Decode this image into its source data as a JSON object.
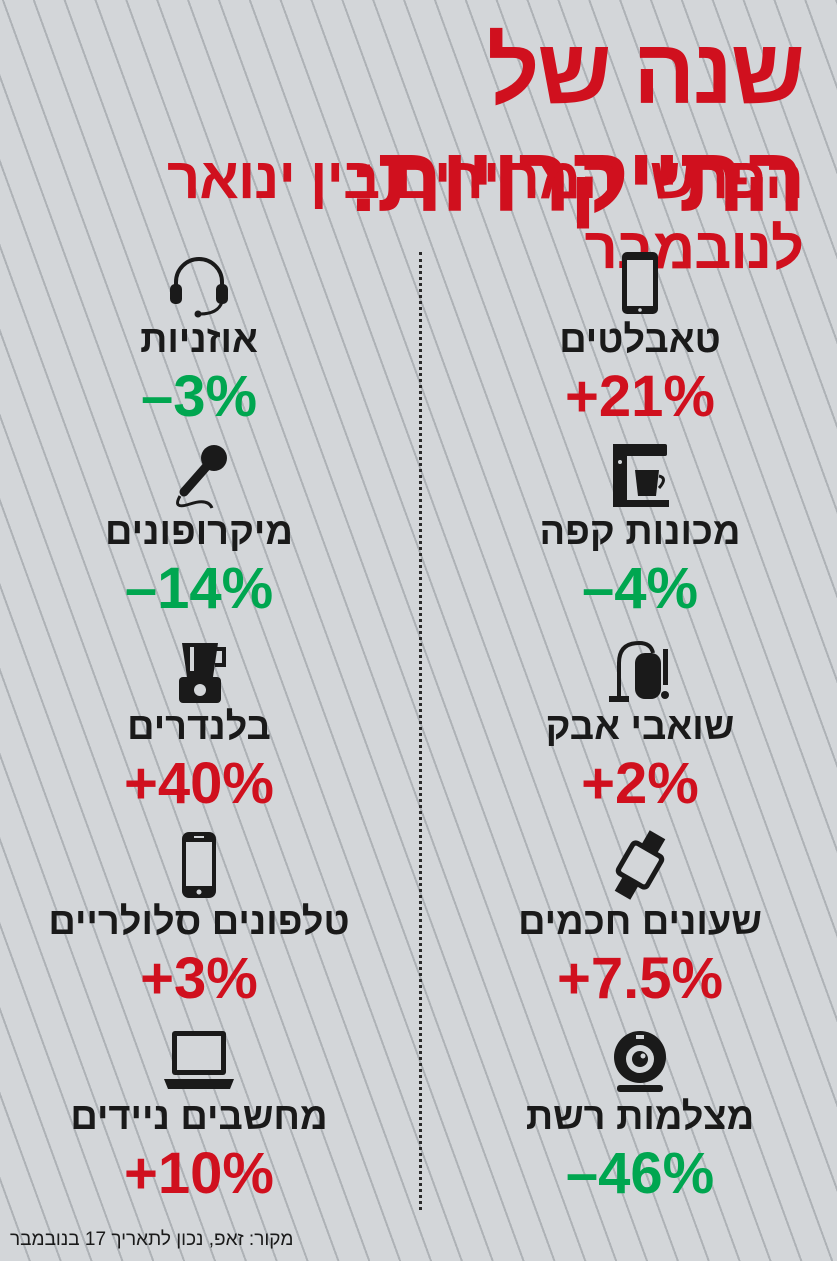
{
  "header": {
    "title": "שנה של התייקרויות:",
    "subtitle": "הפרשי המחירים בין ינואר לנובמבר"
  },
  "colors": {
    "increase": "#d0101e",
    "decrease": "#00a650",
    "text": "#1a1a1a"
  },
  "chart_data": {
    "type": "table",
    "columns": [
      {
        "items": [
          {
            "label": "טאבלטים",
            "value": "+21%",
            "change": 21,
            "icon": "tablet-icon"
          },
          {
            "label": "מכונות קפה",
            "value": "–4%",
            "change": -4,
            "icon": "coffee-machine-icon"
          },
          {
            "label": "שואבי אבק",
            "value": "+2%",
            "change": 2,
            "icon": "vacuum-cleaner-icon"
          },
          {
            "label": "שעונים חכמים",
            "value": "+7.5%",
            "change": 7.5,
            "icon": "smartwatch-icon"
          },
          {
            "label": "מצלמות רשת",
            "value": "–46%",
            "change": -46,
            "icon": "webcam-icon"
          }
        ]
      },
      {
        "items": [
          {
            "label": "אוזניות",
            "value": "–3%",
            "change": -3,
            "icon": "headphones-icon"
          },
          {
            "label": "מיקרופונים",
            "value": "–14%",
            "change": -14,
            "icon": "microphone-icon"
          },
          {
            "label": "בלנדרים",
            "value": "+40%",
            "change": 40,
            "icon": "blender-icon"
          },
          {
            "label": "טלפונים סלולריים",
            "value": "+3%",
            "change": 3,
            "icon": "mobile-phone-icon"
          },
          {
            "label": "מחשבים ניידים",
            "value": "+10%",
            "change": 10,
            "icon": "laptop-icon"
          }
        ]
      }
    ]
  },
  "footer": {
    "source": "מקור: זאפ, נכון לתאריך 17 בנובמבר"
  }
}
